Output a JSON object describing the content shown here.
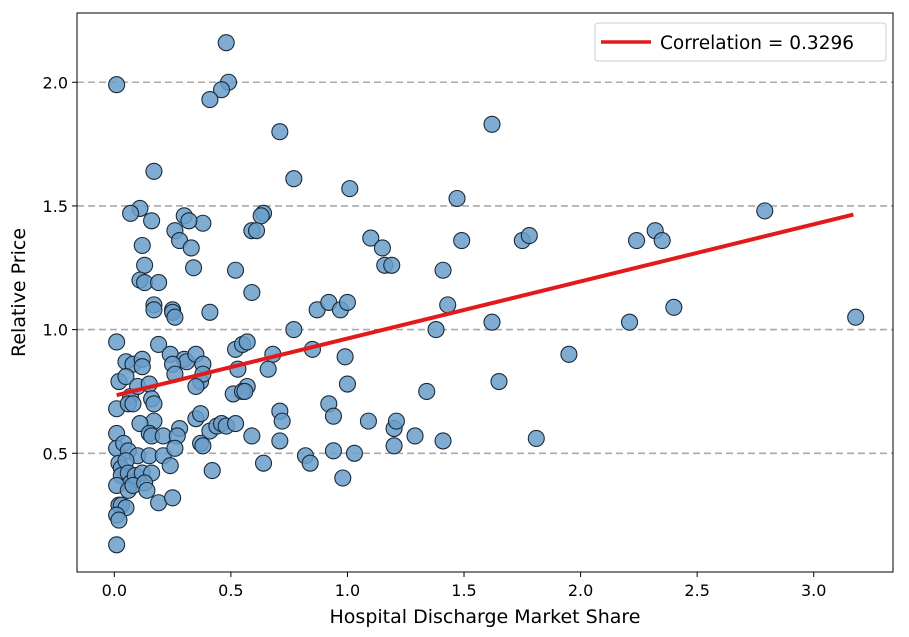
{
  "chart_data": {
    "type": "scatter",
    "xlabel": "Hospital Discharge Market Share",
    "ylabel": "Relative Price",
    "xlim": [
      -0.16,
      3.34
    ],
    "ylim": [
      0.02,
      2.28
    ],
    "x_ticks": [
      0.0,
      0.5,
      1.0,
      1.5,
      2.0,
      2.5,
      3.0
    ],
    "x_tick_labels": [
      "0.0",
      "0.5",
      "1.0",
      "1.5",
      "2.0",
      "2.5",
      "3.0"
    ],
    "y_ticks": [
      0.5,
      1.0,
      1.5,
      2.0
    ],
    "y_tick_labels": [
      "0.5",
      "1.0",
      "1.5",
      "2.0"
    ],
    "grid": "horizontal dashed",
    "legend_position": "top-right",
    "legend": {
      "label": "Correlation = 0.3296"
    },
    "colors": {
      "points_fill": "#6a9ec9",
      "points_edge": "#1a2a3a",
      "trend_line": "#e31a1c",
      "grid": "#aaaaaa"
    },
    "trend_line": {
      "x": [
        0.01,
        3.17
      ],
      "y": [
        0.735,
        1.465
      ]
    },
    "points": [
      [
        0.01,
        1.99
      ],
      [
        0.48,
        2.16
      ],
      [
        0.49,
        2.0
      ],
      [
        0.46,
        1.97
      ],
      [
        0.41,
        1.93
      ],
      [
        0.71,
        1.8
      ],
      [
        1.62,
        1.83
      ],
      [
        0.17,
        1.64
      ],
      [
        0.77,
        1.61
      ],
      [
        1.01,
        1.57
      ],
      [
        0.11,
        1.49
      ],
      [
        0.07,
        1.47
      ],
      [
        0.16,
        1.44
      ],
      [
        0.3,
        1.46
      ],
      [
        0.38,
        1.43
      ],
      [
        0.32,
        1.44
      ],
      [
        0.64,
        1.47
      ],
      [
        0.63,
        1.46
      ],
      [
        1.47,
        1.53
      ],
      [
        2.79,
        1.48
      ],
      [
        0.26,
        1.4
      ],
      [
        0.28,
        1.36
      ],
      [
        0.33,
        1.33
      ],
      [
        0.12,
        1.34
      ],
      [
        0.59,
        1.4
      ],
      [
        0.61,
        1.4
      ],
      [
        1.1,
        1.37
      ],
      [
        1.15,
        1.33
      ],
      [
        1.49,
        1.36
      ],
      [
        1.75,
        1.36
      ],
      [
        1.78,
        1.38
      ],
      [
        2.24,
        1.36
      ],
      [
        2.32,
        1.4
      ],
      [
        2.35,
        1.36
      ],
      [
        0.13,
        1.26
      ],
      [
        0.34,
        1.25
      ],
      [
        0.52,
        1.24
      ],
      [
        1.16,
        1.26
      ],
      [
        1.19,
        1.26
      ],
      [
        1.41,
        1.24
      ],
      [
        0.11,
        1.2
      ],
      [
        0.13,
        1.19
      ],
      [
        0.19,
        1.19
      ],
      [
        0.59,
        1.15
      ],
      [
        0.17,
        1.1
      ],
      [
        0.17,
        1.08
      ],
      [
        0.25,
        1.08
      ],
      [
        0.25,
        1.07
      ],
      [
        0.26,
        1.05
      ],
      [
        0.41,
        1.07
      ],
      [
        0.87,
        1.08
      ],
      [
        0.92,
        1.11
      ],
      [
        0.97,
        1.08
      ],
      [
        1.0,
        1.11
      ],
      [
        1.43,
        1.1
      ],
      [
        2.4,
        1.09
      ],
      [
        0.01,
        0.95
      ],
      [
        0.19,
        0.94
      ],
      [
        0.77,
        1.0
      ],
      [
        1.38,
        1.0
      ],
      [
        1.62,
        1.03
      ],
      [
        2.21,
        1.03
      ],
      [
        3.18,
        1.05
      ],
      [
        0.24,
        0.9
      ],
      [
        0.3,
        0.88
      ],
      [
        0.31,
        0.87
      ],
      [
        0.35,
        0.9
      ],
      [
        0.38,
        0.86
      ],
      [
        0.52,
        0.92
      ],
      [
        0.55,
        0.94
      ],
      [
        0.57,
        0.95
      ],
      [
        0.68,
        0.9
      ],
      [
        0.85,
        0.92
      ],
      [
        0.99,
        0.89
      ],
      [
        1.95,
        0.9
      ],
      [
        0.05,
        0.87
      ],
      [
        0.08,
        0.86
      ],
      [
        0.12,
        0.88
      ],
      [
        0.12,
        0.85
      ],
      [
        0.25,
        0.86
      ],
      [
        0.26,
        0.82
      ],
      [
        0.37,
        0.79
      ],
      [
        0.38,
        0.82
      ],
      [
        0.53,
        0.84
      ],
      [
        0.66,
        0.84
      ],
      [
        0.02,
        0.79
      ],
      [
        0.05,
        0.81
      ],
      [
        0.07,
        0.73
      ],
      [
        0.1,
        0.77
      ],
      [
        0.15,
        0.78
      ],
      [
        0.35,
        0.77
      ],
      [
        0.57,
        0.77
      ],
      [
        1.0,
        0.78
      ],
      [
        1.34,
        0.75
      ],
      [
        1.65,
        0.79
      ],
      [
        0.01,
        0.68
      ],
      [
        0.06,
        0.7
      ],
      [
        0.08,
        0.7
      ],
      [
        0.16,
        0.72
      ],
      [
        0.17,
        0.7
      ],
      [
        0.51,
        0.74
      ],
      [
        0.55,
        0.75
      ],
      [
        0.56,
        0.75
      ],
      [
        0.17,
        0.63
      ],
      [
        0.11,
        0.62
      ],
      [
        0.28,
        0.6
      ],
      [
        0.35,
        0.64
      ],
      [
        0.37,
        0.66
      ],
      [
        0.41,
        0.59
      ],
      [
        0.44,
        0.61
      ],
      [
        0.46,
        0.62
      ],
      [
        0.48,
        0.61
      ],
      [
        0.52,
        0.62
      ],
      [
        0.71,
        0.67
      ],
      [
        0.72,
        0.63
      ],
      [
        0.92,
        0.7
      ],
      [
        0.94,
        0.65
      ],
      [
        1.09,
        0.63
      ],
      [
        1.2,
        0.6
      ],
      [
        1.21,
        0.63
      ],
      [
        0.01,
        0.58
      ],
      [
        0.15,
        0.58
      ],
      [
        0.16,
        0.57
      ],
      [
        0.21,
        0.57
      ],
      [
        0.27,
        0.57
      ],
      [
        0.37,
        0.54
      ],
      [
        0.38,
        0.53
      ],
      [
        0.59,
        0.57
      ],
      [
        0.71,
        0.55
      ],
      [
        1.29,
        0.57
      ],
      [
        1.41,
        0.55
      ],
      [
        1.81,
        0.56
      ],
      [
        0.01,
        0.52
      ],
      [
        0.04,
        0.54
      ],
      [
        0.06,
        0.51
      ],
      [
        0.1,
        0.49
      ],
      [
        0.15,
        0.49
      ],
      [
        0.21,
        0.49
      ],
      [
        0.26,
        0.52
      ],
      [
        0.94,
        0.51
      ],
      [
        1.03,
        0.5
      ],
      [
        1.2,
        0.53
      ],
      [
        0.82,
        0.49
      ],
      [
        0.84,
        0.46
      ],
      [
        0.64,
        0.46
      ],
      [
        0.02,
        0.46
      ],
      [
        0.03,
        0.44
      ],
      [
        0.03,
        0.41
      ],
      [
        0.05,
        0.47
      ],
      [
        0.06,
        0.42
      ],
      [
        0.07,
        0.38
      ],
      [
        0.09,
        0.41
      ],
      [
        0.12,
        0.42
      ],
      [
        0.16,
        0.42
      ],
      [
        0.24,
        0.45
      ],
      [
        0.42,
        0.43
      ],
      [
        0.98,
        0.4
      ],
      [
        0.01,
        0.37
      ],
      [
        0.06,
        0.35
      ],
      [
        0.08,
        0.37
      ],
      [
        0.13,
        0.38
      ],
      [
        0.14,
        0.35
      ],
      [
        0.19,
        0.3
      ],
      [
        0.25,
        0.32
      ],
      [
        0.02,
        0.29
      ],
      [
        0.03,
        0.29
      ],
      [
        0.05,
        0.28
      ],
      [
        0.01,
        0.25
      ],
      [
        0.02,
        0.23
      ],
      [
        0.01,
        0.13
      ]
    ]
  }
}
